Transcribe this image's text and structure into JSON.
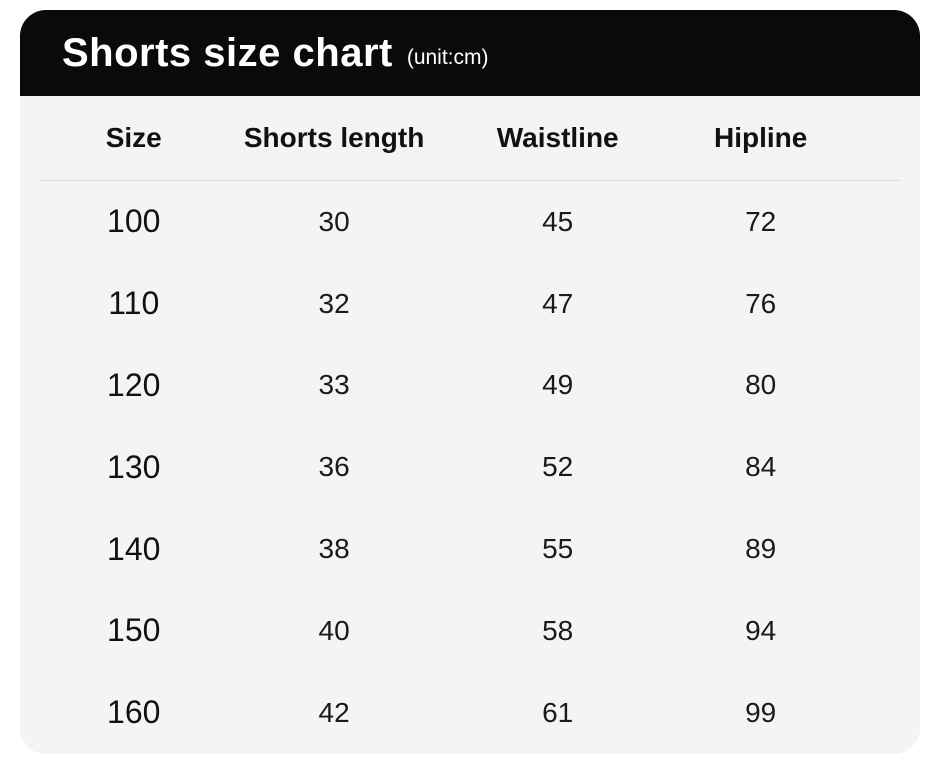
{
  "header": {
    "title": "Shorts size chart",
    "unit": "(unit:cm)"
  },
  "chart_data": {
    "type": "table",
    "title": "Shorts size chart",
    "unit": "cm",
    "columns": [
      "Size",
      "Shorts length",
      "Waistline",
      "Hipline"
    ],
    "rows": [
      [
        "100",
        "30",
        "45",
        "72"
      ],
      [
        "110",
        "32",
        "47",
        "76"
      ],
      [
        "120",
        "33",
        "49",
        "80"
      ],
      [
        "130",
        "36",
        "52",
        "84"
      ],
      [
        "140",
        "38",
        "55",
        "89"
      ],
      [
        "150",
        "40",
        "58",
        "94"
      ],
      [
        "160",
        "42",
        "61",
        "99"
      ]
    ]
  },
  "colors": {
    "title_bar_bg": "#0a0a0a",
    "title_text": "#ffffff",
    "panel_bg": "#f4f4f4",
    "divider": "#dcdcdc",
    "table_text": "#1a1a1a"
  }
}
